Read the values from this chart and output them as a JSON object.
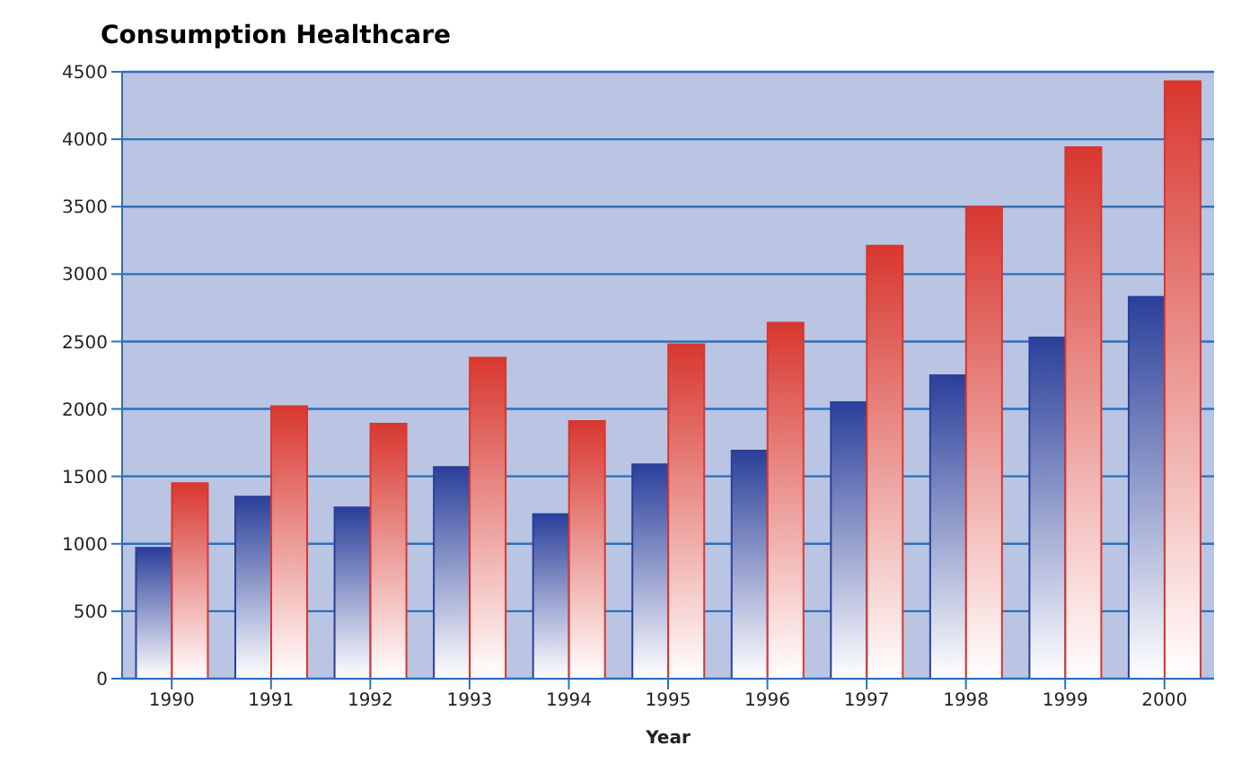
{
  "chart_data": {
    "type": "bar",
    "title": "Consumption Healthcare",
    "xlabel": "Year",
    "categories": [
      "1990",
      "1991",
      "1992",
      "1993",
      "1994",
      "1995",
      "1996",
      "1997",
      "1998",
      "1999",
      "2000"
    ],
    "series": [
      {
        "color": "#2a3f9a",
        "values": [
          970,
          1350,
          1270,
          1570,
          1220,
          1590,
          1690,
          2050,
          2250,
          2530,
          2830
        ]
      },
      {
        "color": "#d8372f",
        "values": [
          1450,
          2020,
          1890,
          2380,
          1910,
          2480,
          2640,
          3210,
          3500,
          3940,
          4430
        ]
      }
    ],
    "ylim": [
      0,
      4500
    ],
    "yticks": [
      0,
      500,
      1000,
      1500,
      2000,
      2500,
      3000,
      3500,
      4000,
      4500
    ],
    "grid": "y"
  }
}
